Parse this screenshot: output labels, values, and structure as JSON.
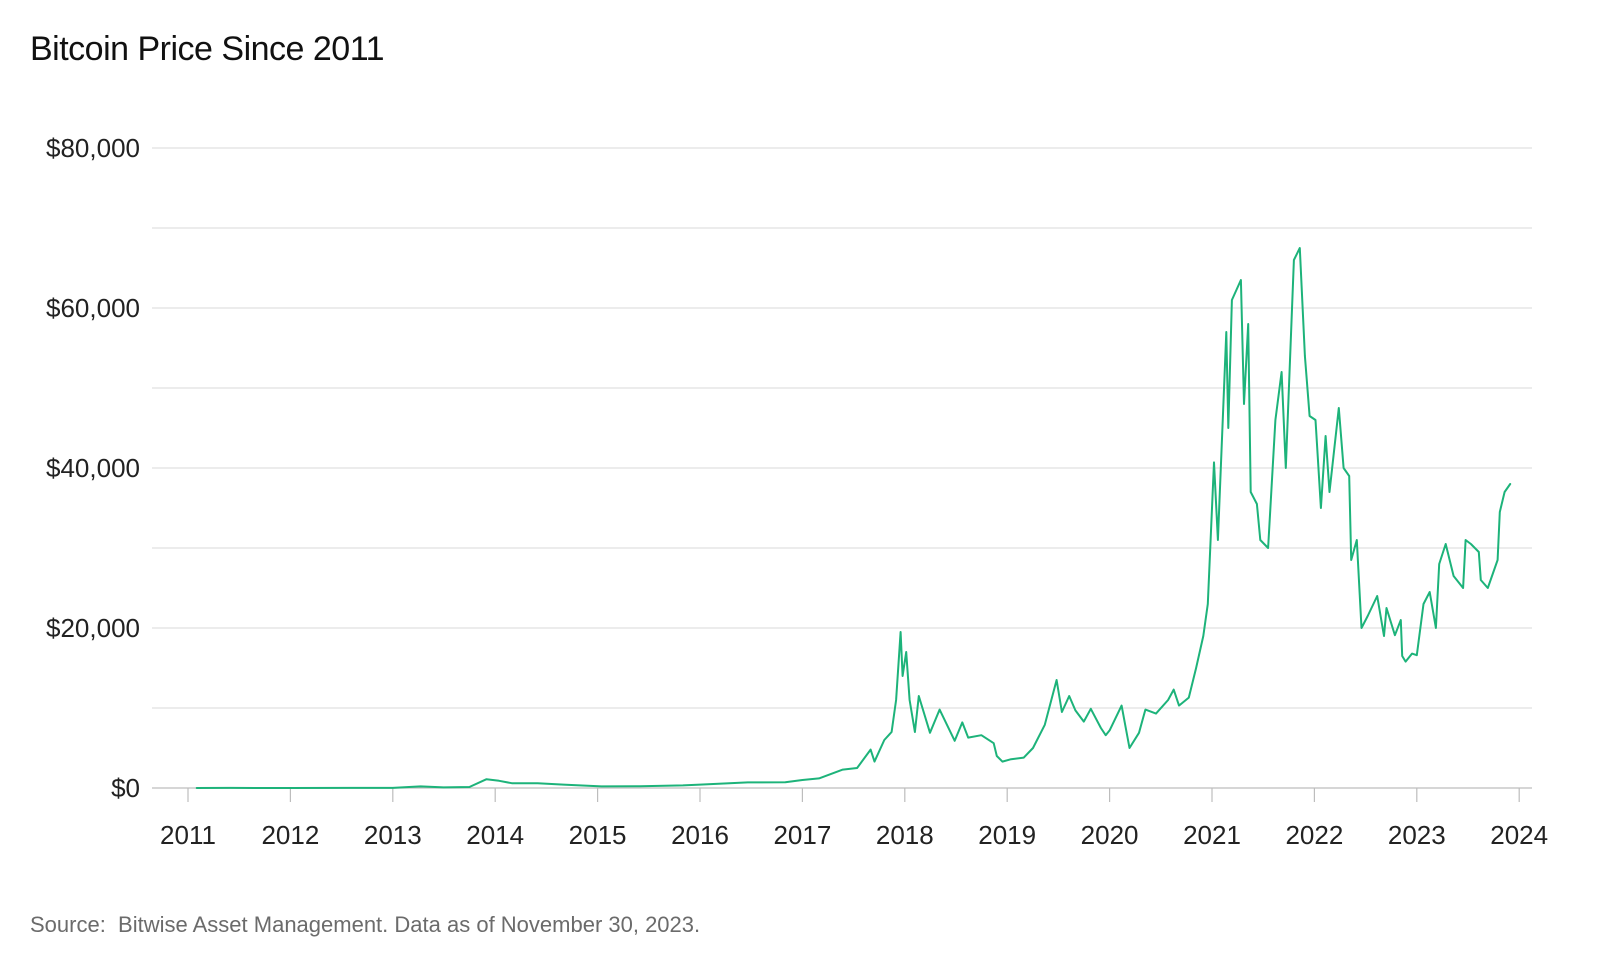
{
  "title": "Bitcoin Price Since 2011",
  "source": "Source:  Bitwise Asset Management. Data as of November 30, 2023.",
  "chart_data": {
    "type": "line",
    "title": "Bitcoin Price Since 2011",
    "xlabel": "",
    "ylabel": "",
    "x_ticks": [
      "2011",
      "2012",
      "2013",
      "2014",
      "2015",
      "2016",
      "2017",
      "2018",
      "2019",
      "2020",
      "2021",
      "2022",
      "2023",
      "2024"
    ],
    "y_ticks": [
      "$0",
      "$20,000",
      "$40,000",
      "$60,000",
      "$80,000"
    ],
    "xlim": [
      "2011-01-01",
      "2024-01-01"
    ],
    "ylim": [
      0,
      80000
    ],
    "grid": true,
    "line_color": "#1db37a",
    "series": [
      {
        "x": [
          "2011-02-01",
          "2011-06-01",
          "2012-01-01",
          "2012-08-01",
          "2013-01-01",
          "2013-04-10",
          "2013-07-01",
          "2013-10-01",
          "2013-12-01",
          "2014-01-15",
          "2014-03-01",
          "2014-06-01",
          "2014-09-01",
          "2015-01-15",
          "2015-06-01",
          "2015-11-01",
          "2016-01-01",
          "2016-06-20",
          "2016-11-01",
          "2017-01-01",
          "2017-03-01",
          "2017-05-25",
          "2017-07-15",
          "2017-09-01",
          "2017-09-15",
          "2017-10-20",
          "2017-11-15",
          "2017-12-01",
          "2017-12-17",
          "2017-12-24",
          "2018-01-06",
          "2018-01-18",
          "2018-02-06",
          "2018-02-20",
          "2018-04-01",
          "2018-05-05",
          "2018-06-28",
          "2018-07-25",
          "2018-08-15",
          "2018-10-01",
          "2018-11-14",
          "2018-11-25",
          "2018-12-15",
          "2019-01-15",
          "2019-03-01",
          "2019-04-03",
          "2019-05-15",
          "2019-06-26",
          "2019-07-15",
          "2019-08-10",
          "2019-09-01",
          "2019-10-01",
          "2019-10-26",
          "2019-12-01",
          "2019-12-18",
          "2020-01-01",
          "2020-02-13",
          "2020-03-12",
          "2020-04-15",
          "2020-05-08",
          "2020-06-15",
          "2020-07-28",
          "2020-08-17",
          "2020-09-05",
          "2020-10-10",
          "2020-11-05",
          "2020-12-01",
          "2020-12-17",
          "2021-01-08",
          "2021-01-22",
          "2021-02-21",
          "2021-02-28",
          "2021-03-13",
          "2021-04-14",
          "2021-04-25",
          "2021-05-10",
          "2021-05-19",
          "2021-06-10",
          "2021-06-22",
          "2021-07-20",
          "2021-08-15",
          "2021-09-06",
          "2021-09-21",
          "2021-10-20",
          "2021-11-10",
          "2021-11-28",
          "2021-12-15",
          "2022-01-05",
          "2022-01-24",
          "2022-02-10",
          "2022-02-24",
          "2022-03-29",
          "2022-04-15",
          "2022-05-05",
          "2022-05-12",
          "2022-06-01",
          "2022-06-18",
          "2022-07-10",
          "2022-08-13",
          "2022-09-06",
          "2022-09-15",
          "2022-10-15",
          "2022-11-05",
          "2022-11-10",
          "2022-11-22",
          "2022-12-15",
          "2023-01-01",
          "2023-01-25",
          "2023-02-16",
          "2023-03-10",
          "2023-03-22",
          "2023-04-14",
          "2023-05-12",
          "2023-06-15",
          "2023-06-24",
          "2023-07-13",
          "2023-08-10",
          "2023-08-17",
          "2023-09-11",
          "2023-10-01",
          "2023-10-16",
          "2023-10-24",
          "2023-11-10",
          "2023-11-20",
          "2023-11-30"
        ],
        "y": [
          1,
          15,
          6,
          10,
          13,
          200,
          80,
          120,
          1100,
          900,
          600,
          600,
          420,
          200,
          230,
          330,
          430,
          700,
          730,
          1000,
          1200,
          2300,
          2500,
          4800,
          3300,
          6000,
          7000,
          11000,
          19500,
          14000,
          17000,
          11000,
          7000,
          11500,
          6900,
          9800,
          5900,
          8200,
          6300,
          6600,
          5600,
          4000,
          3300,
          3600,
          3800,
          5000,
          7900,
          13500,
          9500,
          11500,
          9700,
          8300,
          9900,
          7500,
          6600,
          7200,
          10300,
          5000,
          6900,
          9800,
          9300,
          11000,
          12300,
          10300,
          11300,
          15000,
          19000,
          23000,
          40700,
          31000,
          57000,
          45000,
          61000,
          63500,
          48000,
          58000,
          37000,
          35500,
          31000,
          30000,
          46000,
          52000,
          40000,
          66000,
          67500,
          54000,
          46500,
          46000,
          35000,
          44000,
          37000,
          47500,
          40000,
          39000,
          28500,
          31000,
          20000,
          21500,
          24000,
          19000,
          22500,
          19100,
          21000,
          16500,
          15800,
          16800,
          16600,
          23000,
          24500,
          20000,
          28000,
          30500,
          26500,
          25000,
          31000,
          30500,
          29500,
          26000,
          25000,
          27000,
          28500,
          34500,
          37000,
          37500,
          38000
        ]
      }
    ]
  }
}
